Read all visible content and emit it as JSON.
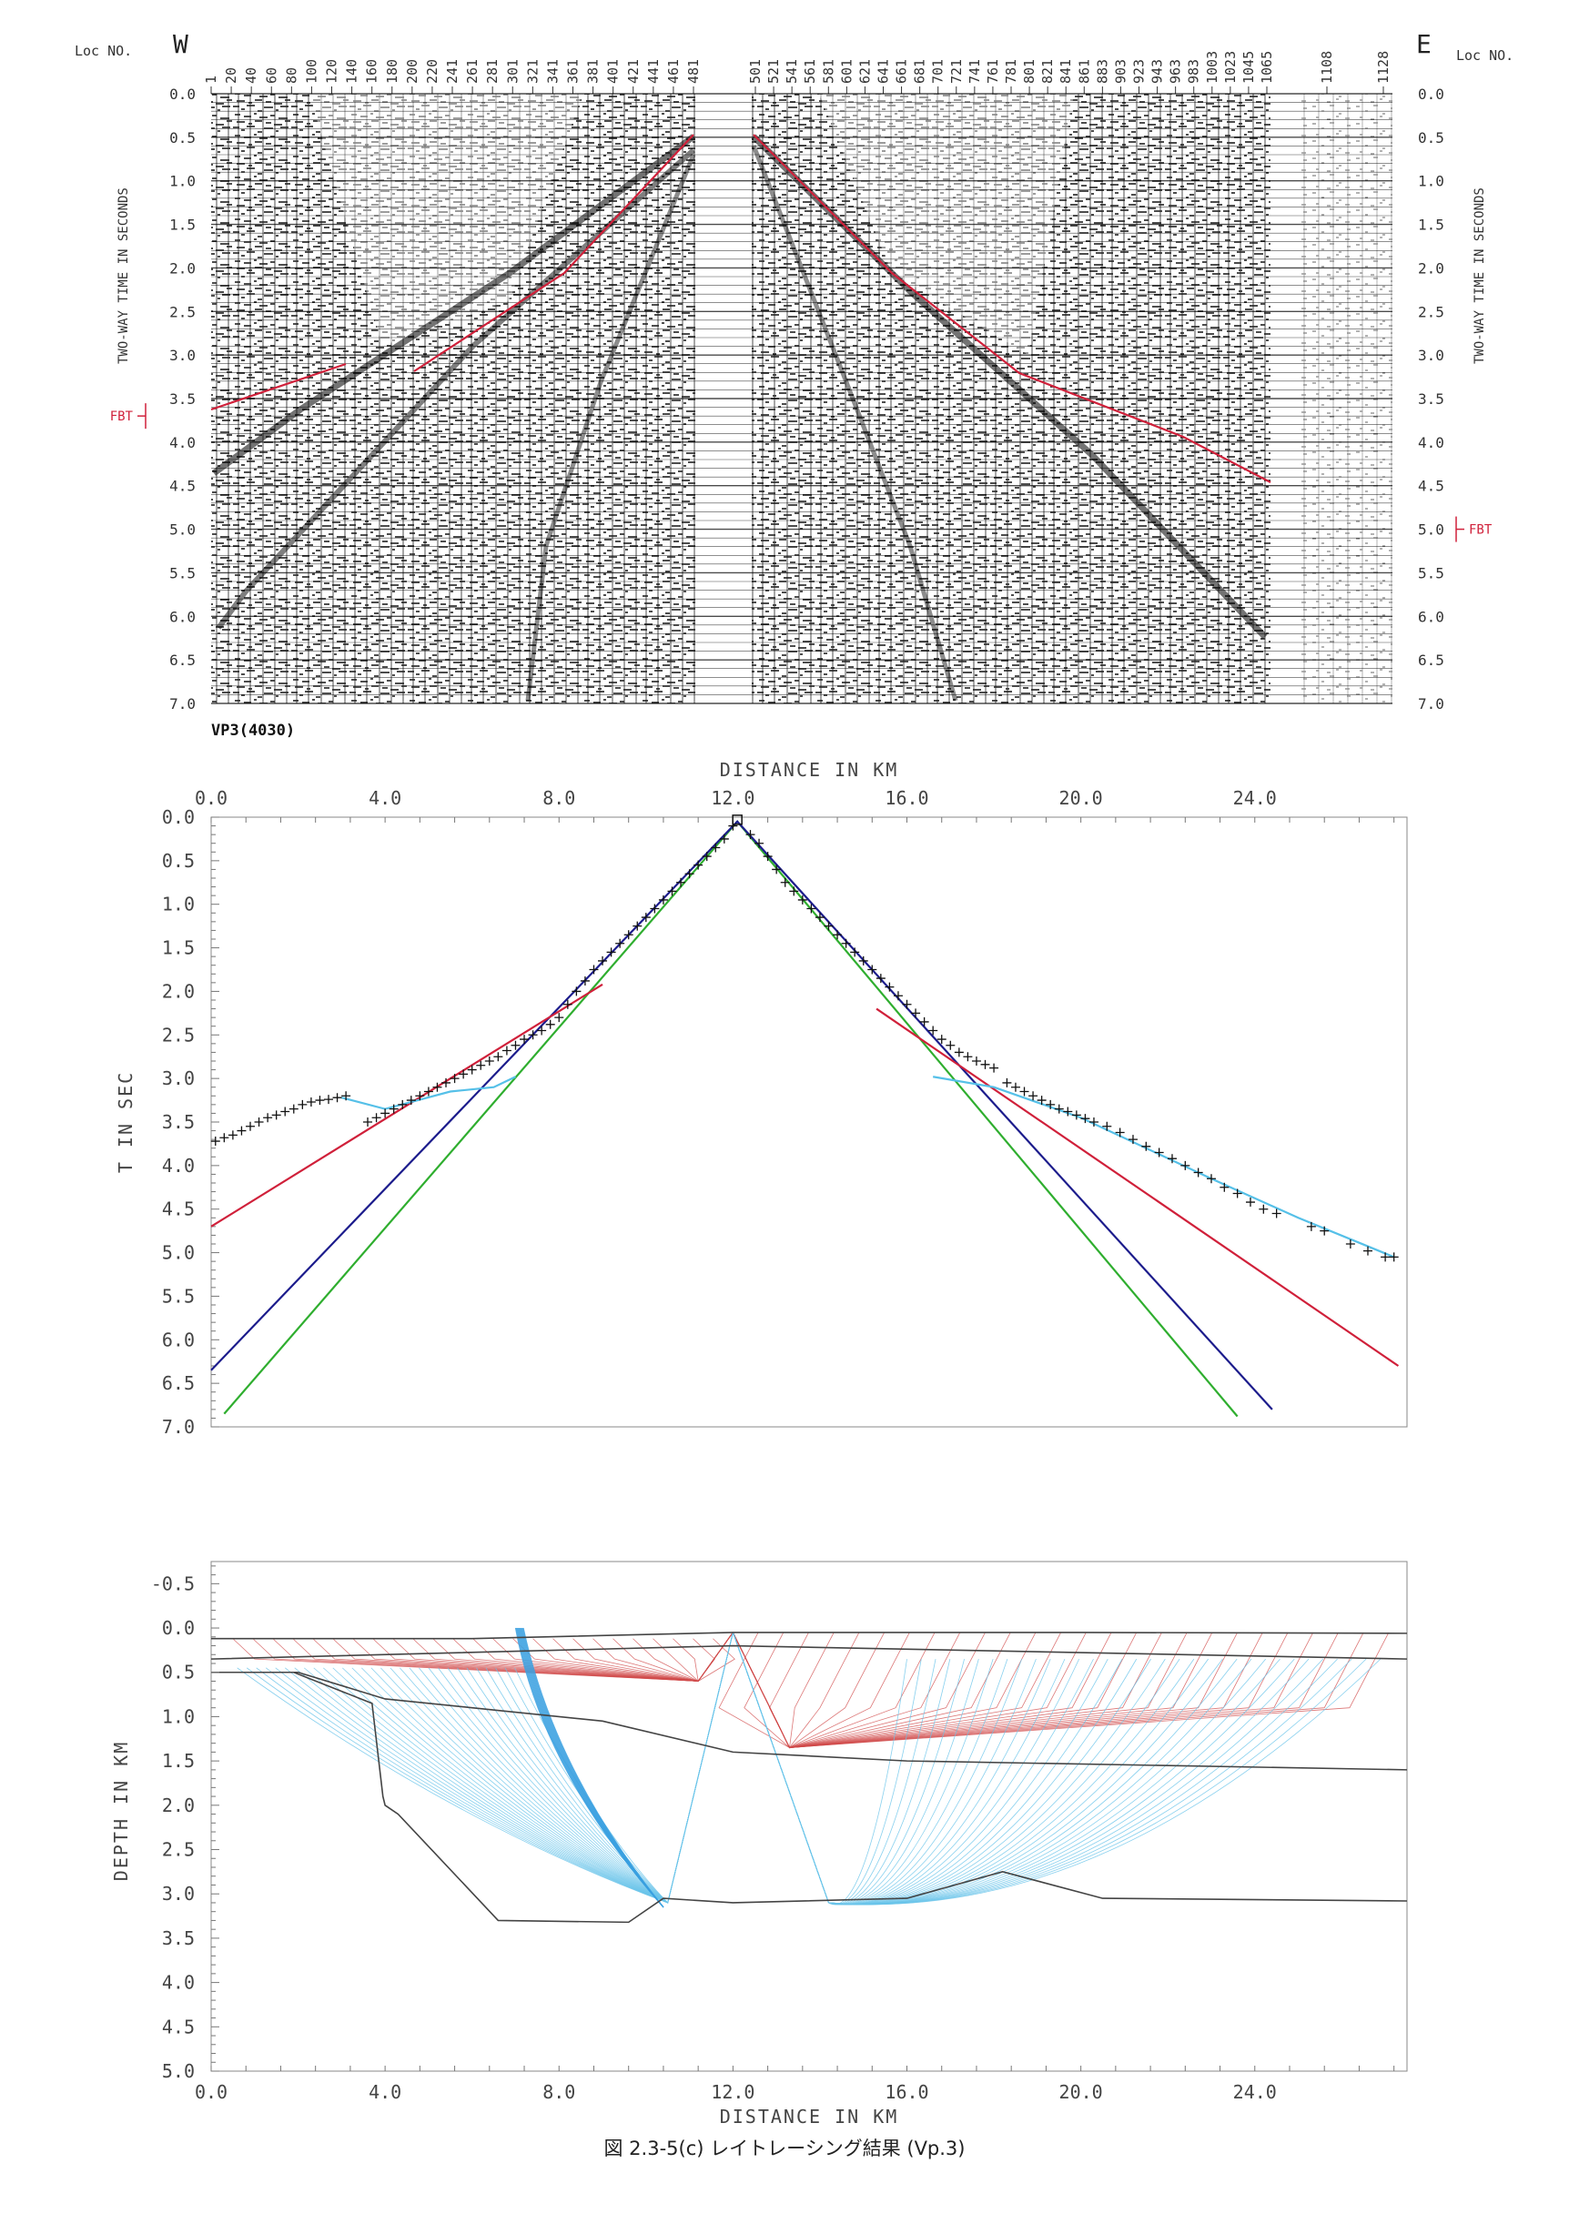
{
  "caption": "図 2.3-5(c) レイトレーシング結果 (Vp.3)",
  "seismic": {
    "loc_label": "Loc NO.",
    "west_label": "W",
    "east_label": "E",
    "vp_label": "VP3(4030)",
    "fbt_label": "FBT",
    "fbt_left_time": 3.7,
    "fbt_right_time": 5.0,
    "time_axis_label": "TWO-WAY TIME IN SECONDS",
    "time_ticks": [
      "0.0",
      "0.5",
      "1.0",
      "1.5",
      "2.0",
      "2.5",
      "3.0",
      "3.5",
      "4.0",
      "4.5",
      "5.0",
      "5.5",
      "6.0",
      "6.5",
      "7.0"
    ],
    "loc_left": [
      "1",
      "20",
      "40",
      "60",
      "80",
      "100",
      "120",
      "140",
      "160",
      "180",
      "200",
      "220",
      "241",
      "261",
      "281",
      "301",
      "321",
      "341",
      "361",
      "381",
      "401",
      "421",
      "441",
      "461",
      "481"
    ],
    "loc_right": [
      "501",
      "521",
      "541",
      "561",
      "581",
      "601",
      "621",
      "641",
      "661",
      "681",
      "701",
      "721",
      "741",
      "761",
      "781",
      "801",
      "821",
      "841",
      "861",
      "883",
      "903",
      "923",
      "943",
      "963",
      "983",
      "1003",
      "1023",
      "1045",
      "1065"
    ],
    "loc_far": [
      "1108",
      "1128"
    ],
    "colors": {
      "trace": "#1a1a1a",
      "pick": "#d0203a"
    }
  },
  "chart_data": [
    {
      "type": "scatter",
      "xlabel": "DISTANCE IN KM",
      "ylabel": "T IN SEC",
      "xlim": [
        0,
        27.5
      ],
      "ylim": [
        7.0,
        0.0
      ],
      "x_ticks": [
        "0.0",
        "4.0",
        "8.0",
        "12.0",
        "16.0",
        "20.0",
        "24.0"
      ],
      "y_ticks": [
        "0.0",
        "0.5",
        "1.0",
        "1.5",
        "2.0",
        "2.5",
        "3.0",
        "3.5",
        "4.0",
        "4.5",
        "5.0",
        "5.5",
        "6.0",
        "6.5",
        "7.0"
      ],
      "source_x": 12.1,
      "picks": [
        [
          0.1,
          3.72
        ],
        [
          0.3,
          3.68
        ],
        [
          0.5,
          3.65
        ],
        [
          0.7,
          3.6
        ],
        [
          0.9,
          3.55
        ],
        [
          1.1,
          3.5
        ],
        [
          1.3,
          3.45
        ],
        [
          1.5,
          3.42
        ],
        [
          1.7,
          3.38
        ],
        [
          1.9,
          3.35
        ],
        [
          2.1,
          3.3
        ],
        [
          2.3,
          3.27
        ],
        [
          2.5,
          3.25
        ],
        [
          2.7,
          3.24
        ],
        [
          2.9,
          3.22
        ],
        [
          3.1,
          3.2
        ],
        [
          3.6,
          3.5
        ],
        [
          3.8,
          3.45
        ],
        [
          4.0,
          3.4
        ],
        [
          4.2,
          3.35
        ],
        [
          4.4,
          3.3
        ],
        [
          4.6,
          3.25
        ],
        [
          4.8,
          3.2
        ],
        [
          5.0,
          3.15
        ],
        [
          5.2,
          3.1
        ],
        [
          5.4,
          3.05
        ],
        [
          5.6,
          3.0
        ],
        [
          5.8,
          2.95
        ],
        [
          6.0,
          2.9
        ],
        [
          6.2,
          2.85
        ],
        [
          6.4,
          2.8
        ],
        [
          6.6,
          2.75
        ],
        [
          6.8,
          2.68
        ],
        [
          7.0,
          2.62
        ],
        [
          7.2,
          2.55
        ],
        [
          7.4,
          2.5
        ],
        [
          7.6,
          2.45
        ],
        [
          7.8,
          2.38
        ],
        [
          8.0,
          2.3
        ],
        [
          8.2,
          2.15
        ],
        [
          8.4,
          2.0
        ],
        [
          8.6,
          1.88
        ],
        [
          8.8,
          1.75
        ],
        [
          9.0,
          1.65
        ],
        [
          9.2,
          1.55
        ],
        [
          9.4,
          1.45
        ],
        [
          9.6,
          1.35
        ],
        [
          9.8,
          1.25
        ],
        [
          10.0,
          1.15
        ],
        [
          10.2,
          1.05
        ],
        [
          10.4,
          0.95
        ],
        [
          10.6,
          0.85
        ],
        [
          10.8,
          0.75
        ],
        [
          11.0,
          0.65
        ],
        [
          11.2,
          0.55
        ],
        [
          11.4,
          0.45
        ],
        [
          11.6,
          0.35
        ],
        [
          11.8,
          0.25
        ],
        [
          12.0,
          0.1
        ],
        [
          12.4,
          0.2
        ],
        [
          12.6,
          0.3
        ],
        [
          12.8,
          0.45
        ],
        [
          13.0,
          0.6
        ],
        [
          13.2,
          0.75
        ],
        [
          13.4,
          0.85
        ],
        [
          13.6,
          0.95
        ],
        [
          13.8,
          1.05
        ],
        [
          14.0,
          1.15
        ],
        [
          14.2,
          1.25
        ],
        [
          14.4,
          1.35
        ],
        [
          14.6,
          1.45
        ],
        [
          14.8,
          1.55
        ],
        [
          15.0,
          1.65
        ],
        [
          15.2,
          1.75
        ],
        [
          15.4,
          1.85
        ],
        [
          15.6,
          1.95
        ],
        [
          15.8,
          2.05
        ],
        [
          16.0,
          2.15
        ],
        [
          16.2,
          2.25
        ],
        [
          16.4,
          2.35
        ],
        [
          16.6,
          2.45
        ],
        [
          16.8,
          2.55
        ],
        [
          17.0,
          2.62
        ],
        [
          17.2,
          2.7
        ],
        [
          17.4,
          2.75
        ],
        [
          17.6,
          2.8
        ],
        [
          17.8,
          2.84
        ],
        [
          18.0,
          2.88
        ],
        [
          18.3,
          3.05
        ],
        [
          18.5,
          3.1
        ],
        [
          18.7,
          3.15
        ],
        [
          18.9,
          3.2
        ],
        [
          19.1,
          3.25
        ],
        [
          19.3,
          3.3
        ],
        [
          19.5,
          3.35
        ],
        [
          19.7,
          3.38
        ],
        [
          19.9,
          3.42
        ],
        [
          20.1,
          3.46
        ],
        [
          20.3,
          3.5
        ],
        [
          20.6,
          3.55
        ],
        [
          20.9,
          3.62
        ],
        [
          21.2,
          3.7
        ],
        [
          21.5,
          3.78
        ],
        [
          21.8,
          3.85
        ],
        [
          22.1,
          3.92
        ],
        [
          22.4,
          4.0
        ],
        [
          22.7,
          4.08
        ],
        [
          23.0,
          4.15
        ],
        [
          23.3,
          4.25
        ],
        [
          23.6,
          4.32
        ],
        [
          23.9,
          4.42
        ],
        [
          24.2,
          4.5
        ],
        [
          24.5,
          4.55
        ],
        [
          25.3,
          4.7
        ],
        [
          25.6,
          4.75
        ],
        [
          26.2,
          4.9
        ],
        [
          26.6,
          4.98
        ],
        [
          27.0,
          5.05
        ],
        [
          27.2,
          5.05
        ]
      ],
      "lines": [
        {
          "color": "#2fae2f",
          "points": [
            [
              0.3,
              6.85
            ],
            [
              12.1,
              0.05
            ],
            [
              23.6,
              6.88
            ]
          ]
        },
        {
          "color": "#1c1c8c",
          "points": [
            [
              0.0,
              6.35
            ],
            [
              12.1,
              0.05
            ],
            [
              24.4,
              6.8
            ]
          ]
        },
        {
          "color": "#d0203a",
          "points": [
            [
              0.0,
              4.7
            ],
            [
              9.0,
              1.92
            ]
          ]
        },
        {
          "color": "#d0203a",
          "points": [
            [
              15.3,
              2.2
            ],
            [
              27.3,
              6.3
            ]
          ]
        },
        {
          "color": "#55c0e8",
          "points": [
            [
              3.0,
              3.22
            ],
            [
              4.0,
              3.35
            ],
            [
              5.5,
              3.15
            ],
            [
              6.5,
              3.1
            ],
            [
              7.0,
              2.98
            ]
          ]
        },
        {
          "color": "#55c0e8",
          "points": [
            [
              16.6,
              2.98
            ],
            [
              18.0,
              3.1
            ],
            [
              20.0,
              3.45
            ],
            [
              23.0,
              4.15
            ],
            [
              25.0,
              4.6
            ],
            [
              27.2,
              5.05
            ]
          ]
        }
      ]
    },
    {
      "type": "line",
      "xlabel": "DISTANCE IN KM",
      "ylabel": "DEPTH IN KM",
      "xlim": [
        0,
        27.5
      ],
      "ylim": [
        5.0,
        -0.75
      ],
      "x_ticks": [
        "0.0",
        "4.0",
        "8.0",
        "12.0",
        "16.0",
        "20.0",
        "24.0"
      ],
      "y_ticks": [
        "-0.5",
        "0.0",
        "0.5",
        "1.0",
        "1.5",
        "2.0",
        "2.5",
        "3.0",
        "3.5",
        "4.0",
        "4.5",
        "5.0"
      ],
      "source_x": 12.0,
      "layers": [
        {
          "name": "",
          "points": [
            [
              0,
              0.12
            ],
            [
              6,
              0.12
            ],
            [
              12,
              0.05
            ],
            [
              20,
              0.05
            ],
            [
              27.5,
              0.06
            ]
          ]
        },
        {
          "name": "",
          "points": [
            [
              0,
              0.35
            ],
            [
              12,
              0.2
            ],
            [
              27.5,
              0.35
            ]
          ]
        },
        {
          "name": "",
          "points": [
            [
              0,
              0.5
            ],
            [
              2,
              0.5
            ],
            [
              4,
              0.8
            ],
            [
              6,
              0.9
            ],
            [
              9,
              1.05
            ],
            [
              12,
              1.4
            ],
            [
              16,
              1.5
            ],
            [
              27.5,
              1.6
            ]
          ]
        },
        {
          "name": "",
          "points": [
            [
              0,
              0.5
            ],
            [
              1.9,
              0.5
            ],
            [
              3.7,
              0.85
            ],
            [
              3.95,
              1.9
            ],
            [
              4.0,
              2.0
            ],
            [
              4.3,
              2.1
            ],
            [
              6.6,
              3.3
            ],
            [
              9.6,
              3.32
            ],
            [
              10.4,
              3.05
            ],
            [
              12.0,
              3.1
            ],
            [
              16.0,
              3.05
            ],
            [
              18.2,
              2.75
            ],
            [
              20.5,
              3.05
            ],
            [
              27.5,
              3.08
            ]
          ]
        }
      ],
      "colors": {
        "shallow_rays": "#d04a4a",
        "deep_rays": "#6ac4ea",
        "boundary": "#444444"
      }
    }
  ]
}
